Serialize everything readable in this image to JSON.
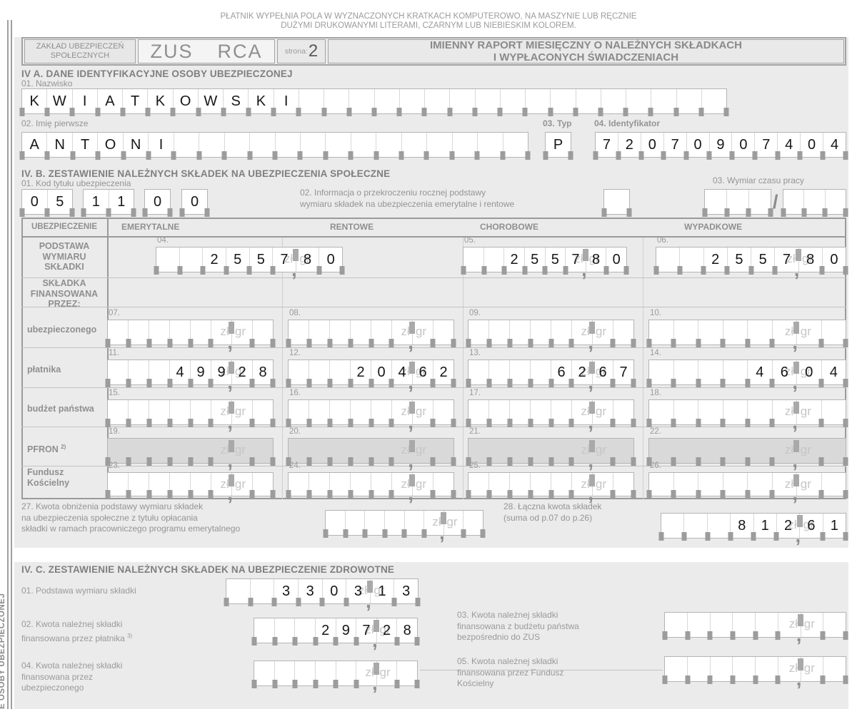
{
  "form": {
    "instruction_line1": "PŁATNIK WYPEŁNIA POLA W WYZNACZONYCH KRATKACH KOMPUTEROWO, NA MASZYNIE LUB RĘCZNIE",
    "instruction_line2": "DUŻYMI DRUKOWANYMI LITERAMI, CZARNYM LUB NIEBIESKIM KOLOREM.",
    "org_name": [
      "ZAKŁAD UBEZPIECZEŃ",
      "SPOŁECZNYCH"
    ],
    "code_org": "ZUS",
    "code_form": "RCA",
    "page_label": "strona:",
    "page_number": "2",
    "title": [
      "IMIENNY RAPORT MIESIĘCZNY O NALEŻNYCH SKŁADKACH",
      "I WYPŁACONYCH ŚWIADCZENIACH"
    ],
    "side_label": "E OSOBY UBEZPIECZONEJ",
    "units": {
      "zl": "zł",
      "gr": "gr",
      "comma": ","
    }
  },
  "section_a": {
    "title": "IV A. DANE IDENTYFIKACYJNE OSOBY UBEZPIECZONEJ",
    "f01_label": "01. Nazwisko",
    "f01": {
      "cells": 28,
      "value": "KWIATKOWSKI"
    },
    "f02_label": "02. Imię pierwsze",
    "f02": {
      "cells": 20,
      "value": "ANTONI"
    },
    "f03_label": "03. Typ",
    "f03": {
      "cells": 1,
      "value": "P"
    },
    "f04_label": "04. Identyfikator",
    "f04": {
      "cells": 11,
      "value": "72070907404"
    }
  },
  "section_b": {
    "title": "IV. B. ZESTAWIENIE NALEŻNYCH SKŁADEK NA UBEZPIECZENIA SPOŁECZNE",
    "f01_label": "01. Kod tytułu ubezpieczenia",
    "f01_parts": [
      {
        "cells": 2,
        "value": "05"
      },
      {
        "cells": 2,
        "value": "11"
      },
      {
        "cells": 1,
        "value": "0"
      },
      {
        "cells": 1,
        "value": "0"
      }
    ],
    "f02_label": [
      "02. Informacja o przekroczeniu rocznej podstawy",
      "wymiaru składek na ubezpieczenia emerytalne i rentowe"
    ],
    "f02": {
      "cells": 1,
      "value": ""
    },
    "f03_label": "03. Wymiar czasu pracy",
    "f03_slash": "/",
    "f03_left": {
      "cells": 3,
      "value": ""
    },
    "f03_right": {
      "cells": 3,
      "value": ""
    },
    "table": {
      "col_headers": [
        "UBEZPIECZENIE",
        "EMERYTALNE",
        "RENTOWE",
        "CHOROBOWE",
        "WYPADKOWE"
      ],
      "row_labels": {
        "podstawa": [
          "PODSTAWA",
          "WYMIARU",
          "SKŁADKI"
        ],
        "skladka": [
          "SKŁADKA",
          "FINANSOWANA",
          "PRZEZ:"
        ],
        "ubezpieczonego": "ubezpieczonego",
        "platnika": "płatnika",
        "budzet": "budżet państwa",
        "pfron": "PFRON",
        "pfron_sup": "2)",
        "fundusz": [
          "Fundusz",
          "Kościelny"
        ]
      },
      "fields": {
        "f04": {
          "num": "04.",
          "zl": "2557",
          "gr": "80"
        },
        "f05": {
          "num": "05.",
          "zl": "2557",
          "gr": "80"
        },
        "f06": {
          "num": "06.",
          "zl": "2557",
          "gr": "80"
        },
        "f07": {
          "num": "07.",
          "zl": "",
          "gr": ""
        },
        "f08": {
          "num": "08.",
          "zl": "",
          "gr": ""
        },
        "f09": {
          "num": "09.",
          "zl": "",
          "gr": ""
        },
        "f10": {
          "num": "10.",
          "zl": "",
          "gr": ""
        },
        "f11": {
          "num": "11.",
          "zl": "499",
          "gr": "28"
        },
        "f12": {
          "num": "12.",
          "zl": "204",
          "gr": "62"
        },
        "f13": {
          "num": "13.",
          "zl": "62",
          "gr": "67"
        },
        "f14": {
          "num": "14.",
          "zl": "46",
          "gr": "04"
        },
        "f15": {
          "num": "15.",
          "zl": "",
          "gr": ""
        },
        "f16": {
          "num": "16.",
          "zl": "",
          "gr": ""
        },
        "f17": {
          "num": "17.",
          "zl": "",
          "gr": ""
        },
        "f18": {
          "num": "18.",
          "zl": "",
          "gr": ""
        },
        "f19": {
          "num": "19.",
          "zl": "",
          "gr": "",
          "shaded": true
        },
        "f20": {
          "num": "20.",
          "zl": "",
          "gr": "",
          "shaded": true
        },
        "f21": {
          "num": "21.",
          "zl": "",
          "gr": "",
          "shaded": true
        },
        "f22": {
          "num": "22.",
          "zl": "",
          "gr": "",
          "shaded": true
        },
        "f23": {
          "num": "23.",
          "zl": "",
          "gr": ""
        },
        "f24": {
          "num": "24.",
          "zl": "",
          "gr": ""
        },
        "f25": {
          "num": "25.",
          "zl": "",
          "gr": ""
        },
        "f26": {
          "num": "26.",
          "zl": "",
          "gr": ""
        }
      }
    },
    "f27_label": [
      "27. Kwota obniżenia podstawy wymiaru składek",
      "na ubezpieczenia społeczne z tytułu opłacania",
      "składki w ramach pracowniczego programu emerytalnego"
    ],
    "f27": {
      "zl": "",
      "gr": ""
    },
    "f28_label": [
      "28. Łączna kwota składek",
      "(suma od p.07 do p.26)"
    ],
    "f28": {
      "zl": "812",
      "gr": "61"
    }
  },
  "section_c": {
    "title": "IV. C. ZESTAWIENIE NALEŻNYCH SKŁADEK NA UBEZPIECZENIE ZDROWOTNE",
    "f01_label": "01. Podstawa wymiaru składki",
    "f01": {
      "zl": "3303",
      "gr": "13"
    },
    "f02_label": [
      "02. Kwota należnej składki",
      "finansowana przez płatnika"
    ],
    "f02_sup": "3)",
    "f02": {
      "zl": "297",
      "gr": "28"
    },
    "f03_label": [
      "03. Kwota należnej składki",
      "finansowana z budżetu państwa",
      "bezpośrednio do ZUS"
    ],
    "f03": {
      "zl": "",
      "gr": ""
    },
    "f04_label": [
      "04. Kwota należnej składki",
      "finansowana przez",
      "ubezpieczonego"
    ],
    "f04": {
      "zl": "",
      "gr": ""
    },
    "f05_label": [
      "05. Kwota należnej składki",
      "finansowana przez Fundusz",
      "Kościelny"
    ],
    "f05": {
      "zl": "",
      "gr": ""
    }
  }
}
